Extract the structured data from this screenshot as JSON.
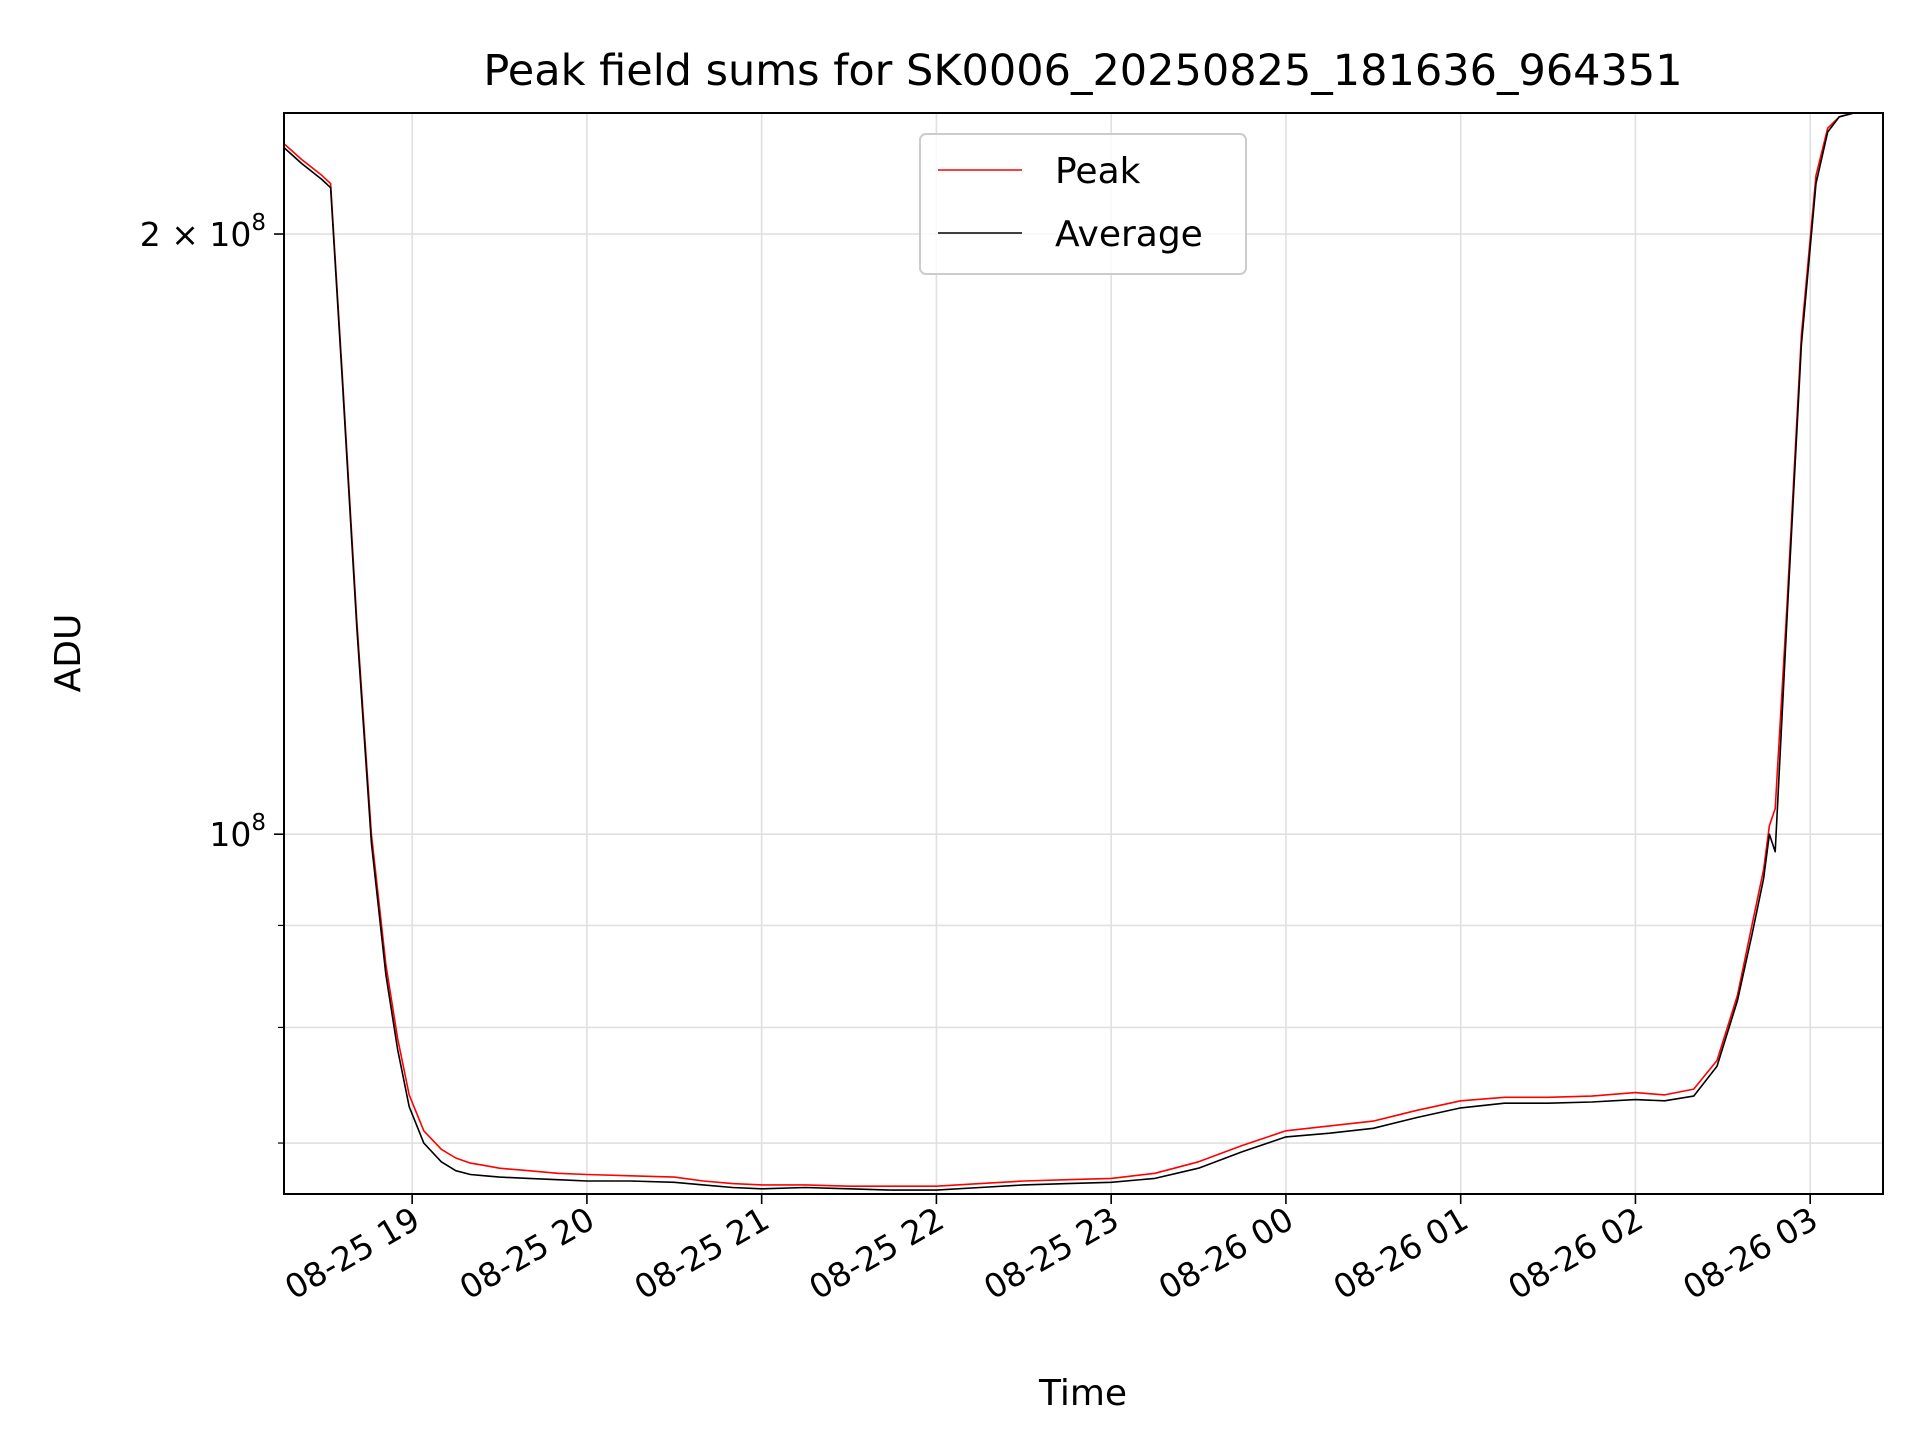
{
  "chart_data": {
    "type": "line",
    "title": "Peak field sums for SK0006_20250825_181636_964351",
    "xlabel": "Time",
    "ylabel": "ADU",
    "yscale": "log",
    "xlim": [
      "2025-08-25 18:16",
      "2025-08-26 03:25"
    ],
    "ylim": [
      66000000,
      230000000
    ],
    "grid": true,
    "legend_position": "upper center",
    "x_ticks": [
      "08-25 19",
      "08-25 20",
      "08-25 21",
      "08-25 22",
      "08-25 23",
      "08-26 00",
      "08-26 01",
      "08-26 02",
      "08-26 03"
    ],
    "y_ticks": [
      {
        "value": 100000000,
        "base": "10",
        "exp": "8",
        "mult": ""
      },
      {
        "value": 200000000,
        "base": "10",
        "exp": "8",
        "mult": "2 × "
      }
    ],
    "series": [
      {
        "name": "Peak",
        "color": "#ff0000",
        "x": [
          "2025-08-25 18:16",
          "2025-08-25 18:22",
          "2025-08-25 18:29",
          "2025-08-25 18:32",
          "2025-08-25 18:36",
          "2025-08-25 18:41",
          "2025-08-25 18:46",
          "2025-08-25 18:51",
          "2025-08-25 18:55",
          "2025-08-25 18:59",
          "2025-08-25 19:04",
          "2025-08-25 19:10",
          "2025-08-25 19:15",
          "2025-08-25 19:20",
          "2025-08-25 19:25",
          "2025-08-25 19:30",
          "2025-08-25 19:40",
          "2025-08-25 19:50",
          "2025-08-25 20:00",
          "2025-08-25 20:15",
          "2025-08-25 20:30",
          "2025-08-25 20:40",
          "2025-08-25 20:50",
          "2025-08-25 21:00",
          "2025-08-25 21:15",
          "2025-08-25 21:30",
          "2025-08-25 21:45",
          "2025-08-25 22:00",
          "2025-08-25 22:15",
          "2025-08-25 22:30",
          "2025-08-25 22:45",
          "2025-08-25 23:00",
          "2025-08-25 23:15",
          "2025-08-25 23:30",
          "2025-08-25 23:45",
          "2025-08-26 00:00",
          "2025-08-26 00:15",
          "2025-08-26 00:30",
          "2025-08-26 00:45",
          "2025-08-26 01:00",
          "2025-08-26 01:15",
          "2025-08-26 01:30",
          "2025-08-26 01:45",
          "2025-08-26 02:00",
          "2025-08-26 02:10",
          "2025-08-26 02:20",
          "2025-08-26 02:28",
          "2025-08-26 02:35",
          "2025-08-26 02:40",
          "2025-08-26 02:44",
          "2025-08-26 02:46",
          "2025-08-26 02:48",
          "2025-08-26 02:52",
          "2025-08-26 02:57",
          "2025-08-26 03:02",
          "2025-08-26 03:06",
          "2025-08-26 03:10",
          "2025-08-26 03:15",
          "2025-08-26 03:25"
        ],
        "values": [
          222000000,
          218000000,
          214000000,
          212000000,
          170000000,
          128000000,
          100000000,
          86000000,
          79000000,
          74000000,
          71000000,
          69500000,
          68800000,
          68400000,
          68200000,
          68000000,
          67800000,
          67600000,
          67500000,
          67400000,
          67300000,
          67000000,
          66800000,
          66700000,
          66700000,
          66600000,
          66600000,
          66600000,
          66800000,
          67000000,
          67100000,
          67200000,
          67600000,
          68500000,
          69800000,
          71000000,
          71400000,
          71800000,
          72700000,
          73500000,
          73800000,
          73800000,
          73900000,
          74200000,
          74000000,
          74500000,
          77000000,
          83000000,
          90000000,
          96000000,
          101000000,
          103000000,
          130000000,
          178000000,
          214000000,
          226000000,
          229000000,
          230000000,
          230000000
        ]
      },
      {
        "name": "Average",
        "color": "#000000",
        "x": [
          "2025-08-25 18:16",
          "2025-08-25 18:22",
          "2025-08-25 18:29",
          "2025-08-25 18:32",
          "2025-08-25 18:36",
          "2025-08-25 18:41",
          "2025-08-25 18:46",
          "2025-08-25 18:51",
          "2025-08-25 18:55",
          "2025-08-25 18:59",
          "2025-08-25 19:04",
          "2025-08-25 19:10",
          "2025-08-25 19:15",
          "2025-08-25 19:20",
          "2025-08-25 19:25",
          "2025-08-25 19:30",
          "2025-08-25 19:40",
          "2025-08-25 19:50",
          "2025-08-25 20:00",
          "2025-08-25 20:15",
          "2025-08-25 20:30",
          "2025-08-25 20:40",
          "2025-08-25 20:50",
          "2025-08-25 21:00",
          "2025-08-25 21:15",
          "2025-08-25 21:30",
          "2025-08-25 21:45",
          "2025-08-25 22:00",
          "2025-08-25 22:15",
          "2025-08-25 22:30",
          "2025-08-25 22:45",
          "2025-08-25 23:00",
          "2025-08-25 23:15",
          "2025-08-25 23:30",
          "2025-08-25 23:45",
          "2025-08-26 00:00",
          "2025-08-26 00:15",
          "2025-08-26 00:30",
          "2025-08-26 00:45",
          "2025-08-26 01:00",
          "2025-08-26 01:15",
          "2025-08-26 01:30",
          "2025-08-26 01:45",
          "2025-08-26 02:00",
          "2025-08-26 02:10",
          "2025-08-26 02:20",
          "2025-08-26 02:28",
          "2025-08-26 02:35",
          "2025-08-26 02:40",
          "2025-08-26 02:44",
          "2025-08-26 02:46",
          "2025-08-26 02:48",
          "2025-08-26 02:52",
          "2025-08-26 02:57",
          "2025-08-26 03:02",
          "2025-08-26 03:06",
          "2025-08-26 03:10",
          "2025-08-26 03:15",
          "2025-08-26 03:25"
        ],
        "values": [
          221000000,
          217000000,
          213000000,
          211000000,
          169000000,
          127000000,
          99000000,
          85000000,
          78000000,
          73000000,
          70000000,
          68500000,
          67800000,
          67500000,
          67400000,
          67300000,
          67200000,
          67100000,
          67000000,
          67000000,
          66900000,
          66700000,
          66500000,
          66400000,
          66500000,
          66400000,
          66300000,
          66300000,
          66500000,
          66700000,
          66800000,
          66900000,
          67200000,
          68000000,
          69300000,
          70500000,
          70800000,
          71200000,
          72100000,
          72900000,
          73300000,
          73300000,
          73400000,
          73600000,
          73500000,
          73900000,
          76500000,
          82500000,
          89000000,
          95000000,
          100000000,
          98000000,
          128000000,
          176000000,
          212000000,
          225000000,
          229000000,
          230000000,
          230000000
        ]
      }
    ]
  }
}
